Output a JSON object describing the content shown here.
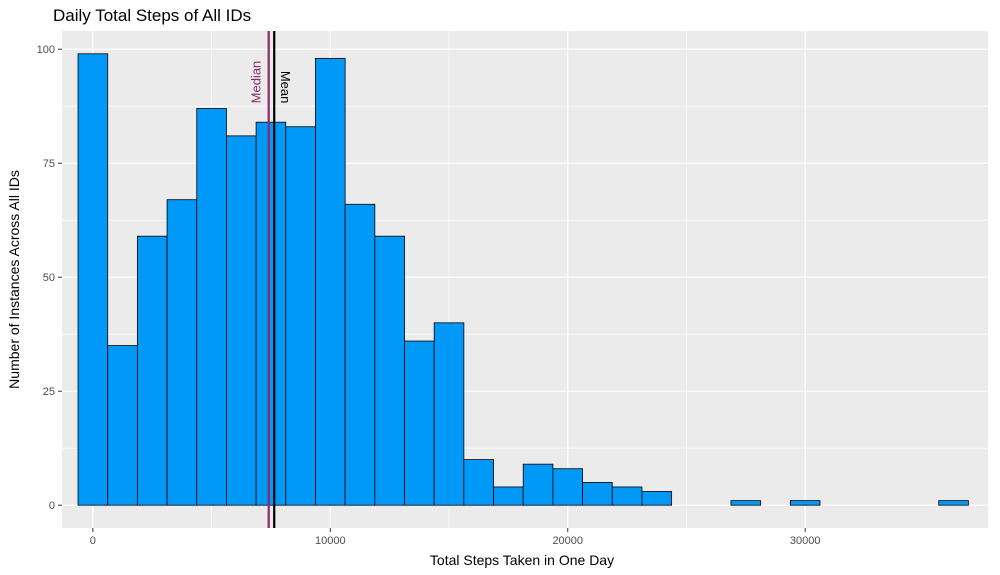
{
  "chart_data": {
    "type": "bar",
    "title": "Daily Total Steps of All IDs",
    "xlabel": "Total Steps Taken in One Day",
    "ylabel": "Number of Instances Across All IDs",
    "bin_width": 1250,
    "bin_centers": [
      0,
      1250,
      2500,
      3750,
      5000,
      6250,
      7500,
      8750,
      10000,
      11250,
      12500,
      13750,
      15000,
      16250,
      17500,
      18750,
      20000,
      21250,
      22500,
      23750,
      25000,
      26250,
      27500,
      28750,
      30000,
      31250,
      32500,
      33750,
      35000,
      36250
    ],
    "values": [
      99,
      35,
      59,
      67,
      87,
      81,
      84,
      83,
      98,
      66,
      59,
      36,
      40,
      10,
      4,
      9,
      8,
      5,
      4,
      3,
      0,
      0,
      1,
      0,
      1,
      0,
      0,
      0,
      0,
      1
    ],
    "xlim": [
      -1300,
      37700
    ],
    "ylim": [
      -5,
      104
    ],
    "x_ticks": [
      0,
      10000,
      20000,
      30000
    ],
    "x_tick_labels": [
      "0",
      "10000",
      "20000",
      "30000"
    ],
    "y_ticks": [
      0,
      25,
      50,
      75,
      100
    ],
    "y_tick_labels": [
      "0",
      "25",
      "50",
      "75",
      "100"
    ],
    "grid": true,
    "bar_color": "#0099f8",
    "bar_edge_color": "#000000",
    "panel_background": "#ebebeb",
    "vlines": [
      {
        "label": "Median",
        "value": 7406,
        "color": "#8b2a6b"
      },
      {
        "label": "Mean",
        "value": 7638,
        "color": "#000000"
      }
    ]
  }
}
